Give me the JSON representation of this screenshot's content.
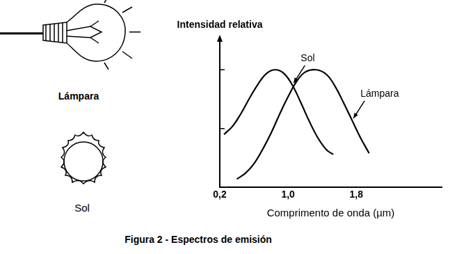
{
  "chart_data": {
    "type": "line",
    "ylabel": "Intensidad relativa",
    "xlabel": "Comprimento de onda (µm)",
    "xlim": [
      0.2,
      2.8
    ],
    "xticks": [
      {
        "value": 0.2,
        "label": "0,2"
      },
      {
        "value": 1.0,
        "label": "1,0"
      },
      {
        "value": 1.8,
        "label": "1,8"
      }
    ],
    "ylim": [
      0,
      1.25
    ],
    "yticks": [
      0,
      0.5,
      1
    ],
    "tick_labels": "x",
    "grid": false,
    "series": [
      {
        "name": "Sol",
        "color": "#000000",
        "x": [
          0.25,
          0.35,
          0.45,
          0.55,
          0.65,
          0.75,
          0.85,
          0.95,
          1.05,
          1.15,
          1.25,
          1.35,
          1.45,
          1.53
        ],
        "values": [
          0.45,
          0.52,
          0.63,
          0.76,
          0.88,
          0.97,
          1.0,
          0.97,
          0.87,
          0.72,
          0.56,
          0.42,
          0.32,
          0.28
        ]
      },
      {
        "name": "Lámpara",
        "color": "#000000",
        "x": [
          0.4,
          0.5,
          0.6,
          0.7,
          0.8,
          0.9,
          1.0,
          1.1,
          1.2,
          1.33,
          1.45,
          1.55,
          1.65,
          1.75,
          1.85,
          1.95
        ],
        "values": [
          0.07,
          0.12,
          0.2,
          0.32,
          0.46,
          0.62,
          0.77,
          0.9,
          0.98,
          1.0,
          0.96,
          0.86,
          0.72,
          0.57,
          0.42,
          0.29
        ]
      }
    ],
    "annotations": [
      {
        "text": "Sol",
        "x": 1.05,
        "y": 0.87
      },
      {
        "text": "Lámpara",
        "x": 1.75,
        "y": 0.57
      }
    ]
  },
  "illustrations": [
    "Lámpara",
    "Sol"
  ],
  "caption": "Figura 2 - Espectros de emisión"
}
